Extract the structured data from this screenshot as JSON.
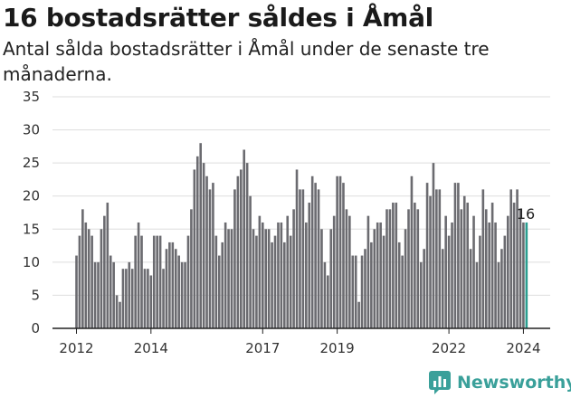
{
  "title": "16 bostadsrätter såldes i Åmål",
  "subtitle": "Antal sålda bostadsrätter i Åmål under de senaste tre månaderna.",
  "brand": "Newsworthy",
  "colors": {
    "bar": "#6b6b70",
    "highlight": "#2a9d8f",
    "grid": "#dddddd",
    "brand": "#3aa09a"
  },
  "chart_data": {
    "type": "bar",
    "x_start": "2012-01",
    "x_ticks": [
      {
        "label": "2012",
        "month_index": 0
      },
      {
        "label": "2014",
        "month_index": 24
      },
      {
        "label": "2017",
        "month_index": 60
      },
      {
        "label": "2019",
        "month_index": 84
      },
      {
        "label": "2022",
        "month_index": 120
      },
      {
        "label": "2024",
        "month_index": 144
      }
    ],
    "y_ticks": [
      0,
      5,
      10,
      15,
      20,
      25,
      30,
      35
    ],
    "ylim": [
      0,
      35
    ],
    "grid": true,
    "values": [
      11,
      14,
      18,
      16,
      15,
      14,
      10,
      10,
      15,
      17,
      19,
      11,
      10,
      5,
      4,
      9,
      9,
      10,
      9,
      14,
      16,
      14,
      9,
      9,
      8,
      14,
      14,
      14,
      9,
      12,
      13,
      13,
      12,
      11,
      10,
      10,
      14,
      18,
      24,
      26,
      28,
      25,
      23,
      21,
      22,
      14,
      11,
      13,
      16,
      15,
      15,
      21,
      23,
      24,
      27,
      25,
      20,
      15,
      14,
      17,
      16,
      15,
      15,
      13,
      14,
      16,
      16,
      13,
      17,
      14,
      18,
      24,
      21,
      21,
      16,
      19,
      23,
      22,
      21,
      15,
      10,
      8,
      15,
      17,
      23,
      23,
      22,
      18,
      17,
      11,
      11,
      4,
      11,
      12,
      17,
      13,
      15,
      16,
      16,
      14,
      18,
      18,
      19,
      19,
      13,
      11,
      15,
      18,
      23,
      19,
      18,
      10,
      12,
      22,
      20,
      25,
      21,
      21,
      12,
      17,
      14,
      16,
      22,
      22,
      18,
      20,
      19,
      12,
      17,
      10,
      14,
      21,
      18,
      16,
      19,
      16,
      10,
      12,
      14,
      17,
      21,
      19,
      21,
      18,
      16,
      16
    ],
    "annotations": [
      {
        "label": "16"
      }
    ]
  }
}
